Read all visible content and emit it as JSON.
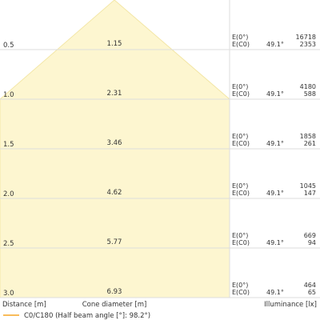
{
  "chart_data": {
    "type": "table",
    "rows": [
      {
        "distance": "0.5",
        "diameter": "1.15",
        "e0_label": "E(0°)",
        "ec0_label": "E(C0)",
        "angle": "49.1°",
        "e0": "16718",
        "ec0": "2353"
      },
      {
        "distance": "1.0",
        "diameter": "2.31",
        "e0_label": "E(0°)",
        "ec0_label": "E(C0)",
        "angle": "49.1°",
        "e0": "4180",
        "ec0": "588"
      },
      {
        "distance": "1.5",
        "diameter": "3.46",
        "e0_label": "E(0°)",
        "ec0_label": "E(C0)",
        "angle": "49.1°",
        "e0": "1858",
        "ec0": "261"
      },
      {
        "distance": "2.0",
        "diameter": "4.62",
        "e0_label": "E(0°)",
        "ec0_label": "E(C0)",
        "angle": "49.1°",
        "e0": "1045",
        "ec0": "147"
      },
      {
        "distance": "2.5",
        "diameter": "5.77",
        "e0_label": "E(0°)",
        "ec0_label": "E(C0)",
        "angle": "49.1°",
        "e0": "669",
        "ec0": "94"
      },
      {
        "distance": "3.0",
        "diameter": "6.93",
        "e0_label": "E(0°)",
        "ec0_label": "E(C0)",
        "angle": "49.1°",
        "e0": "464",
        "ec0": "65"
      }
    ],
    "footer": {
      "distance_label": "Distance [m]",
      "diameter_label": "Cone diameter [m]",
      "illuminance_label": "Illuminance [lx]"
    },
    "legend": {
      "label": "C0/C180 (Half beam angle [°]: 98.2°)",
      "color": "#f5a623"
    },
    "colors": {
      "cone_fill": "#fdf6d0",
      "cone_stroke": "#f3e6a6",
      "grid": "#dddddd"
    }
  }
}
